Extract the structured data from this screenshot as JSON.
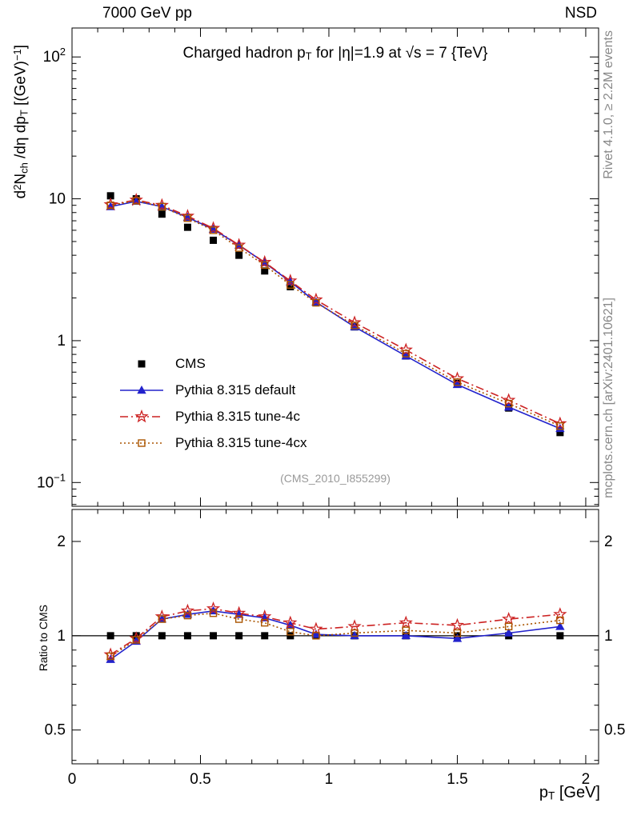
{
  "header": {
    "left": "7000 GeV pp",
    "right": "NSD"
  },
  "title": {
    "pre": "Charged hadron p",
    "sub": "T",
    "post": " for |η|=1.9 at √s = 7 {TeV}"
  },
  "axes": {
    "main_y": {
      "d": "d",
      "d_exp": "2",
      "n": "N",
      "n_sub": "ch",
      "mid": " /dη dp",
      "pt_sub": "T",
      "unit_pre": " [(GeV)",
      "unit_exp": "−1",
      "unit_post": "]"
    },
    "ratio_y": "Ratio to CMS",
    "x": {
      "pre": "p",
      "sub": "T",
      "post": " [GeV]"
    }
  },
  "side_notes": {
    "top": "Rivet 4.1.0, ≥ 2.2M events",
    "bottom": "mcplots.cern.ch [arXiv:2401.10621]"
  },
  "watermark": "(CMS_2010_I855299)",
  "chart_data": {
    "type": "line",
    "title": "Charged hadron pT for |η|=1.9 at √s = 7 {TeV}",
    "xlabel": "pT [GeV]",
    "ylabel": "d2Nch/dη dpT [(GeV)−1]",
    "ratio_ylabel": "Ratio to CMS",
    "yscale": "log",
    "ratio_yscale": "log",
    "grid": false,
    "legend_position": "center-left",
    "xlim": [
      0,
      2.05
    ],
    "main_ylim": [
      0.068,
      160
    ],
    "ratio_ylim": [
      0.39,
      2.53
    ],
    "x_minor_step": 0.1,
    "x_ticks": [
      {
        "v": 0,
        "label": "0"
      },
      {
        "v": 0.5,
        "label": "0.5"
      },
      {
        "v": 1,
        "label": "1"
      },
      {
        "v": 1.5,
        "label": "1.5"
      },
      {
        "v": 2,
        "label": "2"
      }
    ],
    "y_ticks": [
      {
        "v": 0.1,
        "label": "10",
        "exp": "−1"
      },
      {
        "v": 1,
        "label": "1"
      },
      {
        "v": 10,
        "label": "10"
      },
      {
        "v": 100,
        "label": "10",
        "exp": "2"
      }
    ],
    "ratio_ticks": [
      {
        "v": 0.5,
        "label": "0.5"
      },
      {
        "v": 1,
        "label": "1"
      },
      {
        "v": 2,
        "label": "2"
      }
    ],
    "x": [
      0.15,
      0.25,
      0.35,
      0.45,
      0.55,
      0.65,
      0.75,
      0.85,
      0.95,
      1.1,
      1.3,
      1.5,
      1.7,
      1.9
    ],
    "series": [
      {
        "name": "CMS",
        "color": "#000000",
        "marker": "filled-square",
        "line": null,
        "values": [
          10.5,
          10.0,
          7.8,
          6.3,
          5.1,
          4.0,
          3.1,
          2.4,
          1.85,
          1.25,
          0.78,
          0.5,
          0.335,
          0.225
        ],
        "ratio_values": [
          1,
          1,
          1,
          1,
          1,
          1,
          1,
          1,
          1,
          1,
          1,
          1,
          1,
          1
        ]
      },
      {
        "name": "Pythia 8.315 default",
        "color": "#2222cc",
        "marker": "filled-triangle",
        "line": "solid",
        "values": [
          8.8,
          9.6,
          8.8,
          7.4,
          6.1,
          4.7,
          3.55,
          2.6,
          1.87,
          1.25,
          0.78,
          0.49,
          0.34,
          0.24
        ],
        "ratio_values": [
          0.84,
          0.96,
          1.13,
          1.17,
          1.2,
          1.17,
          1.14,
          1.08,
          1.01,
          1.0,
          1.0,
          0.98,
          1.02,
          1.07
        ]
      },
      {
        "name": "Pythia 8.315 tune-4c",
        "color": "#cc2222",
        "marker": "open-star",
        "line": "dashdot",
        "values": [
          9.1,
          9.8,
          9.0,
          7.55,
          6.2,
          4.72,
          3.57,
          2.64,
          1.94,
          1.34,
          0.86,
          0.54,
          0.38,
          0.26
        ],
        "ratio_values": [
          0.87,
          0.98,
          1.15,
          1.2,
          1.22,
          1.18,
          1.15,
          1.1,
          1.05,
          1.07,
          1.1,
          1.08,
          1.13,
          1.17
        ]
      },
      {
        "name": "Pythia 8.315 tune-4cx",
        "color": "#aa5500",
        "marker": "open-square",
        "line": "dotted",
        "values": [
          9.0,
          9.7,
          8.8,
          7.3,
          6.0,
          4.5,
          3.41,
          2.47,
          1.85,
          1.28,
          0.81,
          0.51,
          0.36,
          0.25
        ],
        "ratio_values": [
          0.86,
          0.97,
          1.13,
          1.16,
          1.18,
          1.13,
          1.1,
          1.03,
          1.0,
          1.02,
          1.04,
          1.02,
          1.07,
          1.12
        ]
      }
    ]
  }
}
